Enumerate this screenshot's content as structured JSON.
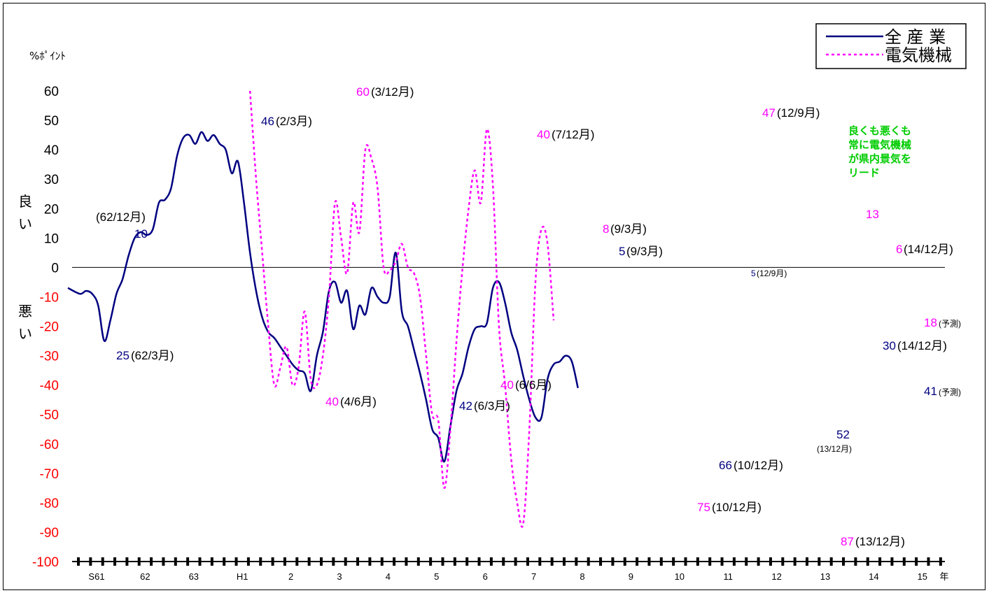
{
  "chart_data": {
    "type": "line",
    "unit_label": "%ﾎﾟｲﾝﾄ",
    "ylim": [
      -100,
      60
    ],
    "yticks": [
      60,
      50,
      40,
      30,
      20,
      10,
      0,
      -10,
      -20,
      -30,
      -40,
      -50,
      -60,
      -70,
      -80,
      -90,
      -100
    ],
    "side_labels": {
      "good": "良\nい",
      "bad": "悪\nい"
    },
    "x_tick_labels": [
      {
        "label": "S61",
        "q": 0
      },
      {
        "label": "62",
        "q": 4
      },
      {
        "label": "63",
        "q": 8
      },
      {
        "label": "H1",
        "q": 12
      },
      {
        "label": "2",
        "q": 16
      },
      {
        "label": "3",
        "q": 20
      },
      {
        "label": "4",
        "q": 24
      },
      {
        "label": "5",
        "q": 28
      },
      {
        "label": "6",
        "q": 32
      },
      {
        "label": "7",
        "q": 36
      },
      {
        "label": "8",
        "q": 40
      },
      {
        "label": "9",
        "q": 44
      },
      {
        "label": "10",
        "q": 48
      },
      {
        "label": "11",
        "q": 52
      },
      {
        "label": "12",
        "q": 56
      },
      {
        "label": "13",
        "q": 60
      },
      {
        "label": "14",
        "q": 64
      },
      {
        "label": "15",
        "q": 68
      }
    ],
    "x_unit": "年",
    "legend": [
      {
        "name": "全 産 業",
        "color": "#000080",
        "style": "solid"
      },
      {
        "name": "電気機械",
        "color": "#ff00ff",
        "style": "dotted"
      }
    ],
    "series": [
      {
        "name": "全 産 業",
        "color": "#000080",
        "points": [
          [
            -1.5,
            -7
          ],
          [
            -0.5,
            -9
          ],
          [
            0,
            -8
          ],
          [
            0.5,
            -9
          ],
          [
            1,
            -13
          ],
          [
            1.5,
            -25
          ],
          [
            2,
            -18
          ],
          [
            2.5,
            -9
          ],
          [
            3,
            -4
          ],
          [
            3.5,
            4
          ],
          [
            4,
            10
          ],
          [
            4.5,
            12
          ],
          [
            5,
            11
          ],
          [
            5.5,
            13
          ],
          [
            6,
            22
          ],
          [
            6.5,
            23
          ],
          [
            7,
            27
          ],
          [
            7.5,
            38
          ],
          [
            8,
            44
          ],
          [
            8.5,
            45
          ],
          [
            9,
            42
          ],
          [
            9.5,
            46
          ],
          [
            10,
            43
          ],
          [
            10.5,
            45
          ],
          [
            11,
            42
          ],
          [
            11.5,
            40
          ],
          [
            12,
            32
          ],
          [
            12.5,
            36
          ],
          [
            13,
            22
          ],
          [
            13.5,
            5
          ],
          [
            14,
            -8
          ],
          [
            14.5,
            -17
          ],
          [
            15,
            -22
          ],
          [
            15.5,
            -24
          ],
          [
            16,
            -27
          ],
          [
            16.5,
            -30
          ],
          [
            17,
            -33
          ],
          [
            17.5,
            -35
          ],
          [
            18,
            -36
          ],
          [
            18.5,
            -42
          ],
          [
            19,
            -30
          ],
          [
            19.5,
            -22
          ],
          [
            20,
            -8
          ],
          [
            20.5,
            -5
          ],
          [
            21,
            -12
          ],
          [
            21.5,
            -8
          ],
          [
            22,
            -21
          ],
          [
            22.5,
            -13
          ],
          [
            23,
            -16
          ],
          [
            23.5,
            -7
          ],
          [
            24,
            -10
          ],
          [
            24.5,
            -12
          ],
          [
            25,
            -10
          ],
          [
            25.5,
            5
          ],
          [
            26,
            -15
          ],
          [
            26.5,
            -20
          ],
          [
            27,
            -28
          ],
          [
            27.5,
            -36
          ],
          [
            28,
            -45
          ],
          [
            28.5,
            -55
          ],
          [
            29,
            -58
          ],
          [
            29.5,
            -66
          ],
          [
            30,
            -54
          ],
          [
            30.5,
            -42
          ],
          [
            31,
            -36
          ],
          [
            31.5,
            -27
          ],
          [
            32,
            -21
          ],
          [
            32.5,
            -20
          ],
          [
            33,
            -19
          ],
          [
            33.5,
            -7
          ],
          [
            34,
            -5
          ],
          [
            34.5,
            -12
          ],
          [
            35,
            -22
          ],
          [
            35.5,
            -28
          ],
          [
            36,
            -37
          ],
          [
            36.5,
            -45
          ],
          [
            37,
            -51
          ],
          [
            37.5,
            -51
          ],
          [
            38,
            -38
          ],
          [
            38.5,
            -33
          ],
          [
            39,
            -32
          ],
          [
            39.5,
            -30
          ],
          [
            40,
            -32
          ],
          [
            40.5,
            -41
          ]
        ]
      },
      {
        "name": "電気機械",
        "color": "#ff00ff",
        "points": [
          [
            13.5,
            60
          ],
          [
            14,
            30
          ],
          [
            14.5,
            5
          ],
          [
            15,
            -20
          ],
          [
            15.5,
            -40
          ],
          [
            16,
            -34
          ],
          [
            16.5,
            -27
          ],
          [
            17,
            -40
          ],
          [
            17.5,
            -34
          ],
          [
            18,
            -15
          ],
          [
            18.5,
            -38
          ],
          [
            19,
            -40
          ],
          [
            19.5,
            -30
          ],
          [
            20,
            -10
          ],
          [
            20.5,
            22
          ],
          [
            21,
            10
          ],
          [
            21.5,
            -2
          ],
          [
            22,
            22
          ],
          [
            22.5,
            12
          ],
          [
            23,
            40
          ],
          [
            23.5,
            37
          ],
          [
            24,
            27
          ],
          [
            24.5,
            0
          ],
          [
            25,
            -1
          ],
          [
            25.5,
            2
          ],
          [
            26,
            8
          ],
          [
            26.5,
            0
          ],
          [
            27,
            -2
          ],
          [
            27.5,
            -10
          ],
          [
            28,
            -30
          ],
          [
            28.5,
            -50
          ],
          [
            29,
            -52
          ],
          [
            29.5,
            -75
          ],
          [
            30,
            -55
          ],
          [
            30.5,
            -25
          ],
          [
            31,
            0
          ],
          [
            31.5,
            20
          ],
          [
            32,
            33
          ],
          [
            32.5,
            22
          ],
          [
            33,
            47
          ],
          [
            33.5,
            28
          ],
          [
            34,
            -20
          ],
          [
            34.5,
            -40
          ],
          [
            35,
            -65
          ],
          [
            35.5,
            -80
          ],
          [
            36,
            -87
          ],
          [
            36.5,
            -55
          ],
          [
            37,
            -5
          ],
          [
            37.5,
            13
          ],
          [
            38,
            8
          ],
          [
            38.5,
            -18
          ]
        ]
      }
    ],
    "annotations": [
      {
        "value": "60",
        "suffix": "(3/12月)",
        "color": "#ff00ff"
      },
      {
        "value": "46",
        "suffix": "(2/3月)",
        "color": "#000080"
      },
      {
        "value": "40",
        "suffix": "(7/12月)",
        "color": "#ff00ff"
      },
      {
        "value": "47",
        "suffix": "(12/9月)",
        "color": "#ff00ff"
      },
      {
        "value": "",
        "suffix": "(62/12月)",
        "color": "#000080"
      },
      {
        "value": "10",
        "suffix": "",
        "color": "#000080"
      },
      {
        "value": "8",
        "suffix": "(9/3月)",
        "color": "#ff00ff"
      },
      {
        "value": "5",
        "suffix": "(9/3月)",
        "color": "#000080"
      },
      {
        "value": "13",
        "suffix": "",
        "color": "#ff00ff"
      },
      {
        "value": "6",
        "suffix": "(14/12月)",
        "color": "#ff00ff"
      },
      {
        "value": "5",
        "suffix": "(12/9月)",
        "color": "#000080",
        "small": true
      },
      {
        "value": "18",
        "suffix": "(予測)",
        "color": "#ff00ff",
        "small_suffix": true
      },
      {
        "value": "25",
        "suffix": "(62/3月)",
        "color": "#000080"
      },
      {
        "value": "30",
        "suffix": "(14/12月)",
        "color": "#000080"
      },
      {
        "value": "40",
        "suffix": "(4/6月)",
        "color": "#ff00ff"
      },
      {
        "value": "40",
        "suffix": "(6/6月)",
        "color": "#ff00ff"
      },
      {
        "value": "42",
        "suffix": "(6/3月)",
        "color": "#000080"
      },
      {
        "value": "41",
        "suffix": "(予測)",
        "color": "#000080",
        "small_suffix": true
      },
      {
        "value": "52",
        "suffix": "",
        "color": "#000080"
      },
      {
        "value": "",
        "suffix": "(13/12月)",
        "color": "#000000",
        "small": true
      },
      {
        "value": "66",
        "suffix": "(10/12月)",
        "color": "#000080"
      },
      {
        "value": "75",
        "suffix": "(10/12月)",
        "color": "#ff00ff"
      },
      {
        "value": "87",
        "suffix": "(13/12月)",
        "color": "#ff00ff"
      }
    ],
    "note": [
      "良くも悪くも",
      "常に電気機械",
      "が県内景気を",
      "リード"
    ],
    "note_color": "#00cc00",
    "grid": false,
    "legend_position": "top-right"
  }
}
